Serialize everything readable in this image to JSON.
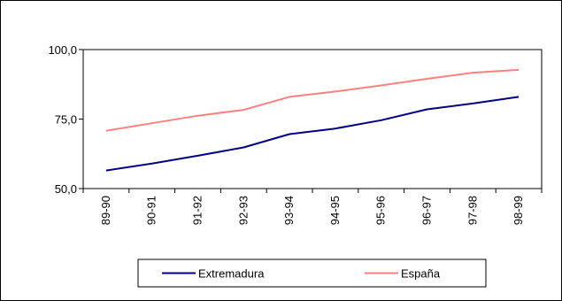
{
  "chart_data": {
    "type": "line",
    "categories": [
      "89-90",
      "90-91",
      "91-92",
      "92-93",
      "93-94",
      "94-95",
      "95-96",
      "96-97",
      "97-98",
      "98-99"
    ],
    "series": [
      {
        "name": "Extremadura",
        "color": "#000080",
        "values": [
          56.5,
          59.0,
          61.8,
          64.8,
          69.6,
          71.6,
          74.6,
          78.5,
          80.6,
          83.0
        ]
      },
      {
        "name": "España",
        "color": "#ff8080",
        "values": [
          70.8,
          73.5,
          76.2,
          78.3,
          83.0,
          84.9,
          87.1,
          89.5,
          91.7,
          92.7
        ]
      }
    ],
    "ylim": [
      50,
      100
    ],
    "yticks": [
      50,
      75,
      100
    ],
    "ytick_labels": [
      "50,0",
      "75,0",
      "100,0"
    ],
    "title": "",
    "xlabel": "",
    "ylabel": "",
    "grid": false,
    "legend_position": "bottom"
  }
}
